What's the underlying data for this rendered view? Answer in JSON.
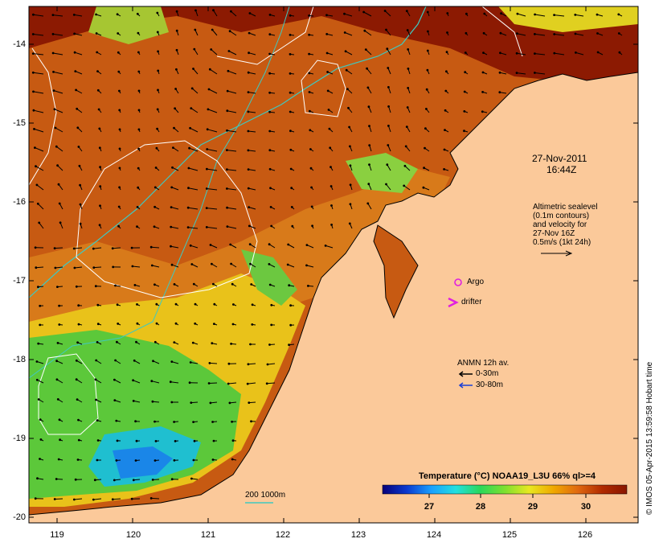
{
  "map": {
    "datetime_line1": "27-Nov-2011",
    "datetime_line2": "16:44Z",
    "altimetry_lines": [
      "Altimetric sealevel",
      "(0.1m contours)",
      "and velocity for",
      "27-Nov 16Z",
      "0.5m/s (1kt 24h)"
    ],
    "argo_label": "Argo",
    "drifter_label": "drifter",
    "anmn_title": "ANMN 12h av.",
    "anmn_items": [
      {
        "label": "0-30m",
        "color": "#000000"
      },
      {
        "label": "30-80m",
        "color": "#1a3fd6"
      }
    ],
    "isobath_label": "200  1000m",
    "isobath_color": "#3fc9c0",
    "y_ticks": [
      "-14",
      "-15",
      "-16",
      "-17",
      "-18",
      "-19",
      "-20"
    ],
    "x_ticks": [
      "119",
      "120",
      "121",
      "122",
      "123",
      "124",
      "125",
      "126"
    ],
    "colorbar_title": "Temperature (°C) NOAA19_L3U 66% ql>=4",
    "colorbar_ticks": [
      "27",
      "28",
      "29",
      "30"
    ],
    "colorbar_colors": [
      "#06007a",
      "#0a3ad0",
      "#1aa0ff",
      "#22e0e0",
      "#2ad85a",
      "#7ee030",
      "#e8e820",
      "#f0a800",
      "#e06810",
      "#b02a00",
      "#8a1600"
    ],
    "credit": "© IMOS 05-Apr-2015 13:59:58 Hobart time",
    "land_color": "#fbc99a"
  }
}
